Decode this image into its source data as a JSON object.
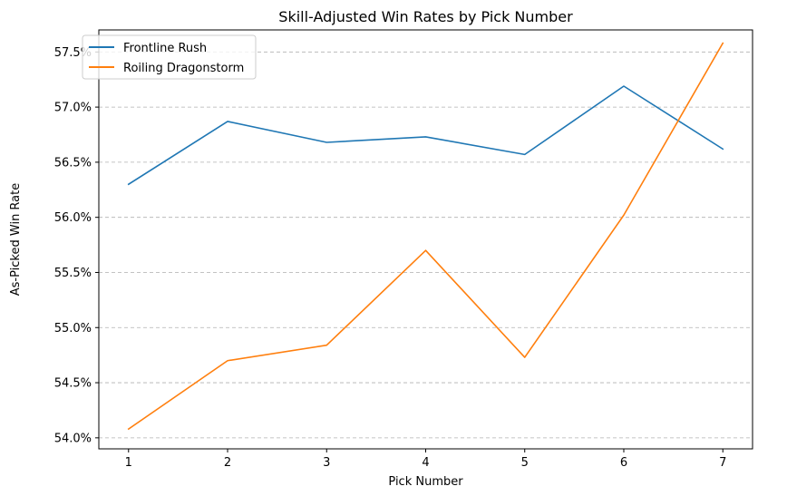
{
  "chart_data": {
    "type": "line",
    "title": "Skill-Adjusted Win Rates by Pick Number",
    "xlabel": "Pick Number",
    "ylabel": "As-Picked Win Rate",
    "x": [
      1,
      2,
      3,
      4,
      5,
      6,
      7
    ],
    "x_ticks": [
      "1",
      "2",
      "3",
      "4",
      "5",
      "6",
      "7"
    ],
    "y_ticks": [
      "54.0%",
      "54.5%",
      "55.0%",
      "55.5%",
      "56.0%",
      "56.5%",
      "57.0%",
      "57.5%"
    ],
    "y_tick_values": [
      54.0,
      54.5,
      55.0,
      55.5,
      56.0,
      56.5,
      57.0,
      57.5
    ],
    "ylim": [
      53.9,
      57.7
    ],
    "xlim": [
      0.7,
      7.3
    ],
    "grid": "y-axis dashed",
    "legend_position": "upper-left",
    "series": [
      {
        "name": "Frontline Rush",
        "color": "#1f77b4",
        "values": [
          56.3,
          56.87,
          56.68,
          56.73,
          56.57,
          57.19,
          56.62
        ]
      },
      {
        "name": "Roiling Dragonstorm",
        "color": "#ff7f0e",
        "values": [
          54.08,
          54.7,
          54.84,
          55.7,
          54.73,
          56.02,
          57.58
        ]
      }
    ]
  }
}
